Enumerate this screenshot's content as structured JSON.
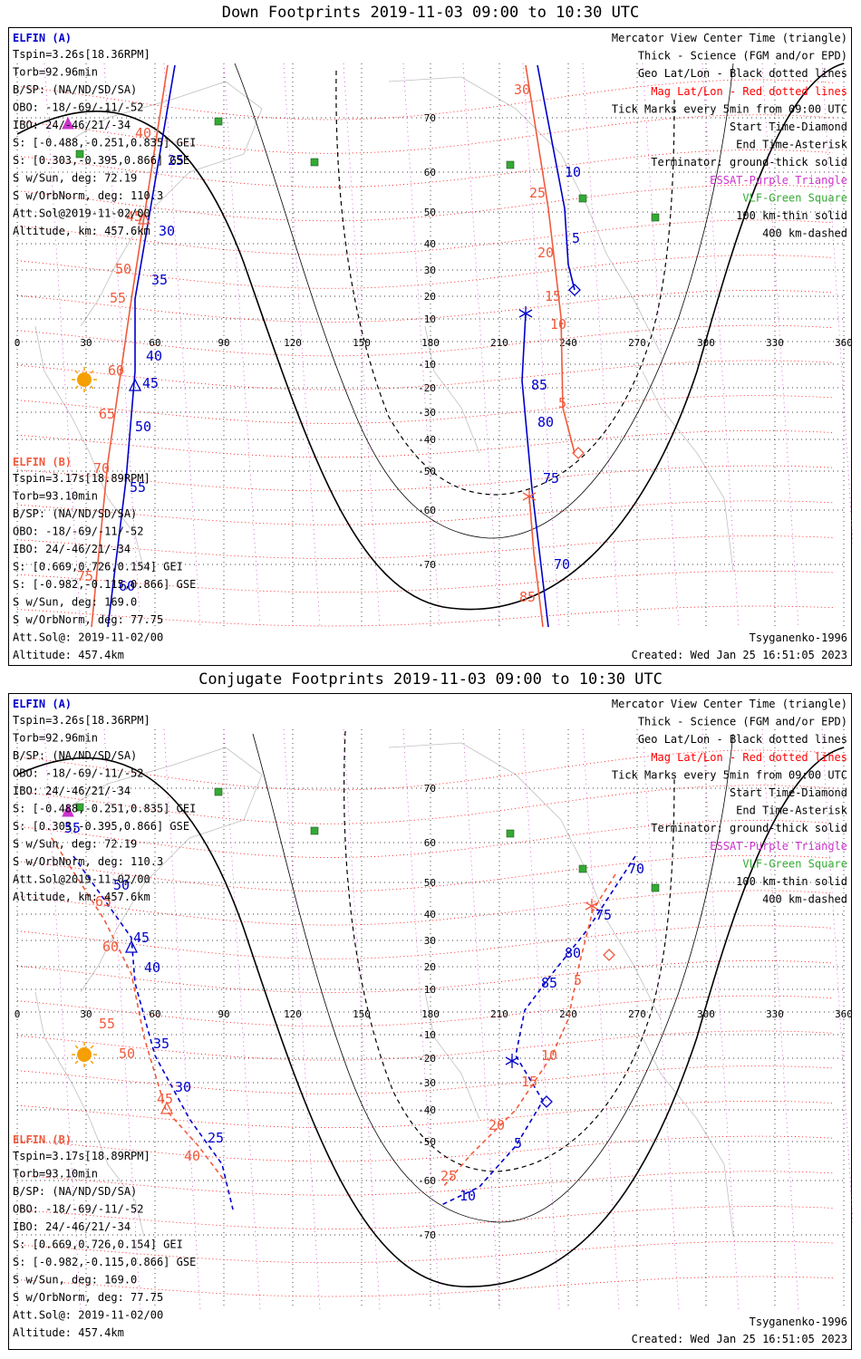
{
  "colors": {
    "elfin_a": "#0000cc",
    "elfin_b": "#f05a3c",
    "mag_grid": "#ff0000",
    "geo_grid": "#000000",
    "essat": "#cc33cc",
    "vlf": "#33aa33",
    "sun": "#f5a000",
    "land": "#c0c0c0"
  },
  "axes": {
    "lon_ticks": [
      "0",
      "30",
      "60",
      "90",
      "120",
      "150",
      "180",
      "210",
      "240",
      "270",
      "300",
      "330",
      "360"
    ],
    "lat_ticks": [
      "70",
      "60",
      "50",
      "40",
      "30",
      "20",
      "10",
      "-10",
      "-20",
      "-30",
      "-40",
      "-50",
      "-60",
      "-70"
    ]
  },
  "panels": [
    {
      "id": "down",
      "title": "Down Footprints 2019-11-03 09:00 to 10:30 UTC",
      "left_a": {
        "header": "ELFIN (A)",
        "lines": [
          "Tspin=3.26s[18.36RPM]",
          "Torb=92.96min",
          "B/SP: (NA/ND/SD/SA)",
          "OBO: -18/-69/-11/-52",
          "IBO: 24/-46/21/-34",
          "S: [-0.488,-0.251,0.835] GEI",
          "S: [0.303,-0.395,0.866] GSE",
          "S w/Sun, deg: 72.19",
          "S w/OrbNorm, deg: 110.3",
          "Att.Sol@2019-11-02/00",
          "Altitude, km: 457.6km"
        ]
      },
      "left_b": {
        "header": "ELFIN (B)",
        "lines": [
          "Tspin=3.17s[18.89RPM]",
          "Torb=93.10min",
          "B/SP: (NA/ND/SD/SA)",
          "OBO: -18/-69/-11/-52",
          "IBO: 24/-46/21/-34",
          "S: [0.669,0.726,0.154] GEI",
          "S: [-0.982,-0.115,0.866] GSE",
          "S w/Sun, deg: 169.0",
          "S w/OrbNorm, deg: 77.75",
          "Att.Sol@: 2019-11-02/00",
          "Altitude: 457.4km"
        ]
      },
      "right_legend": [
        {
          "text": "Mercator View Center Time (triangle)",
          "color": "#000000"
        },
        {
          "text": "Thick - Science (FGM and/or EPD)",
          "color": "#000000"
        },
        {
          "text": "Geo Lat/Lon - Black dotted lines",
          "color": "#000000"
        },
        {
          "text": "Mag Lat/Lon - Red dotted lines",
          "color": "#ff0000"
        },
        {
          "text": "Tick Marks every 5min from 09:00 UTC",
          "color": "#000000"
        },
        {
          "text": "Start Time-Diamond",
          "color": "#000000"
        },
        {
          "text": "End Time-Asterisk",
          "color": "#000000"
        },
        {
          "text": "Terminator: ground-thick solid",
          "color": "#000000"
        },
        {
          "text": "ESSAT-Purple Triangle",
          "color": "#cc33cc"
        },
        {
          "text": "VLF-Green Square",
          "color": "#33aa33"
        },
        {
          "text": "100 km-thin solid",
          "color": "#000000"
        },
        {
          "text": "400 km-dashed",
          "color": "#000000"
        }
      ],
      "model": "Tsyganenko-1996",
      "created": "Created: Wed Jan 25 16:51:05 2023",
      "track_a_labels": [
        "25",
        "30",
        "35",
        "40",
        "45",
        "50",
        "55",
        "60",
        "10",
        "5",
        "85",
        "80",
        "75",
        "70"
      ],
      "track_b_labels": [
        "40",
        "45",
        "50",
        "55",
        "60",
        "65",
        "70",
        "75",
        "30",
        "25",
        "20",
        "15",
        "10",
        "5",
        "85"
      ]
    },
    {
      "id": "conjugate",
      "title": "Conjugate Footprints 2019-11-03 09:00 to 10:30 UTC",
      "left_a": {
        "header": "ELFIN (A)",
        "lines": [
          "Tspin=3.26s[18.36RPM]",
          "Torb=92.96min",
          "B/SP: (NA/ND/SD/SA)",
          "OBO: -18/-69/-11/-52",
          "IBO: 24/-46/21/-34",
          "S: [-0.488,-0.251,0.835] GEI",
          "S: [0.303,-0.395,0.866] GSE",
          "S w/Sun, deg: 72.19",
          "S w/OrbNorm, deg: 110.3",
          "Att.Sol@2019-11-02/00",
          "Altitude, km: 457.6km"
        ]
      },
      "left_b": {
        "header": "ELFIN (B)",
        "lines": [
          "Tspin=3.17s[18.89RPM]",
          "Torb=93.10min",
          "B/SP: (NA/ND/SD/SA)",
          "OBO: -18/-69/-11/-52",
          "IBO: 24/-46/21/-34",
          "S: [0.669,0.726,0.154] GEI",
          "S: [-0.982,-0.115,0.866] GSE",
          "S w/Sun, deg: 169.0",
          "S w/OrbNorm, deg: 77.75",
          "Att.Sol@: 2019-11-02/00",
          "Altitude: 457.4km"
        ]
      },
      "right_legend": [
        {
          "text": "Mercator View Center Time (triangle)",
          "color": "#000000"
        },
        {
          "text": "Thick - Science (FGM and/or EPD)",
          "color": "#000000"
        },
        {
          "text": "Geo Lat/Lon - Black dotted lines",
          "color": "#000000"
        },
        {
          "text": "Mag Lat/Lon - Red dotted lines",
          "color": "#ff0000"
        },
        {
          "text": "Tick Marks every 5min from 09:00 UTC",
          "color": "#000000"
        },
        {
          "text": "Start Time-Diamond",
          "color": "#000000"
        },
        {
          "text": "End Time-Asterisk",
          "color": "#000000"
        },
        {
          "text": "Terminator: ground-thick solid",
          "color": "#000000"
        },
        {
          "text": "ESSAT-Purple Triangle",
          "color": "#cc33cc"
        },
        {
          "text": "VLF-Green Square",
          "color": "#33aa33"
        },
        {
          "text": "100 km-thin solid",
          "color": "#000000"
        },
        {
          "text": "400 km-dashed",
          "color": "#000000"
        }
      ],
      "model": "Tsyganenko-1996",
      "created": "Created: Wed Jan 25 16:51:05 2023",
      "track_a_labels": [
        "55",
        "50",
        "45",
        "40",
        "35",
        "30",
        "25",
        "70",
        "75",
        "80",
        "85",
        "5",
        "10"
      ],
      "track_b_labels": [
        "50",
        "55",
        "60",
        "65",
        "45",
        "40",
        "10",
        "15",
        "20",
        "25",
        "5"
      ]
    }
  ]
}
